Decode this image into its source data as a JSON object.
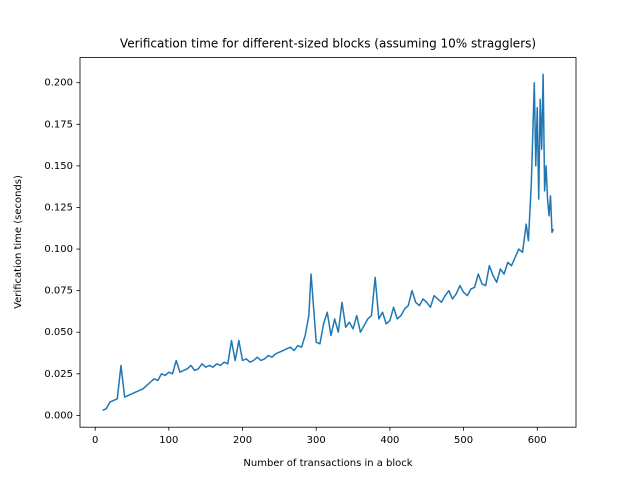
{
  "chart_data": {
    "type": "line",
    "title": "Verification time for different-sized blocks (assuming 10% stragglers)",
    "x_label": "Number of transactions in a block",
    "y_label": "Verification time (seconds)",
    "x": [
      10,
      15,
      20,
      25,
      30,
      35,
      40,
      45,
      50,
      55,
      60,
      65,
      70,
      75,
      80,
      85,
      90,
      95,
      100,
      105,
      110,
      115,
      120,
      125,
      130,
      135,
      140,
      145,
      150,
      155,
      160,
      165,
      170,
      175,
      180,
      185,
      190,
      195,
      200,
      205,
      210,
      215,
      220,
      225,
      230,
      235,
      240,
      245,
      250,
      255,
      260,
      265,
      270,
      275,
      280,
      285,
      290,
      293,
      300,
      305,
      310,
      315,
      320,
      325,
      330,
      335,
      340,
      345,
      350,
      355,
      360,
      365,
      370,
      375,
      380,
      385,
      390,
      395,
      400,
      405,
      410,
      415,
      420,
      425,
      430,
      435,
      440,
      445,
      450,
      455,
      460,
      465,
      470,
      475,
      480,
      485,
      490,
      495,
      500,
      505,
      510,
      515,
      520,
      525,
      530,
      535,
      540,
      545,
      550,
      555,
      560,
      565,
      570,
      575,
      580,
      585,
      588,
      592,
      596,
      598,
      600,
      602,
      604,
      606,
      608,
      610,
      612,
      614,
      616,
      618,
      620,
      622
    ],
    "series": [
      {
        "name": "verification time",
        "color": "#1f77b4",
        "values": [
          0.003,
          0.004,
          0.008,
          0.009,
          0.01,
          0.03,
          0.011,
          0.012,
          0.013,
          0.014,
          0.015,
          0.016,
          0.018,
          0.02,
          0.022,
          0.021,
          0.025,
          0.024,
          0.026,
          0.025,
          0.033,
          0.026,
          0.027,
          0.028,
          0.03,
          0.027,
          0.028,
          0.031,
          0.029,
          0.03,
          0.029,
          0.031,
          0.03,
          0.032,
          0.031,
          0.045,
          0.033,
          0.045,
          0.033,
          0.034,
          0.032,
          0.033,
          0.035,
          0.033,
          0.034,
          0.036,
          0.035,
          0.037,
          0.038,
          0.039,
          0.04,
          0.041,
          0.039,
          0.042,
          0.041,
          0.048,
          0.06,
          0.085,
          0.044,
          0.043,
          0.055,
          0.062,
          0.048,
          0.058,
          0.05,
          0.068,
          0.053,
          0.056,
          0.052,
          0.06,
          0.05,
          0.054,
          0.058,
          0.06,
          0.083,
          0.058,
          0.062,
          0.055,
          0.057,
          0.065,
          0.058,
          0.06,
          0.064,
          0.066,
          0.075,
          0.068,
          0.066,
          0.07,
          0.068,
          0.065,
          0.072,
          0.07,
          0.068,
          0.072,
          0.075,
          0.07,
          0.073,
          0.078,
          0.074,
          0.072,
          0.076,
          0.077,
          0.085,
          0.079,
          0.078,
          0.09,
          0.084,
          0.08,
          0.088,
          0.085,
          0.092,
          0.09,
          0.095,
          0.1,
          0.098,
          0.115,
          0.105,
          0.14,
          0.2,
          0.15,
          0.185,
          0.13,
          0.19,
          0.16,
          0.205,
          0.135,
          0.15,
          0.13,
          0.12,
          0.132,
          0.11,
          0.112
        ]
      }
    ],
    "xlim": [
      -20.6,
      652.6
    ],
    "ylim": [
      -0.0071,
      0.2151
    ],
    "xticks": [
      0,
      100,
      200,
      300,
      400,
      500,
      600
    ],
    "yticks": [
      {
        "value": 0,
        "label": "0.000"
      },
      {
        "value": 0.025,
        "label": "0.025"
      },
      {
        "value": 0.05,
        "label": "0.050"
      },
      {
        "value": 0.075,
        "label": "0.075"
      },
      {
        "value": 0.1,
        "label": "0.100"
      },
      {
        "value": 0.125,
        "label": "0.125"
      },
      {
        "value": 0.15,
        "label": "0.150"
      },
      {
        "value": 0.175,
        "label": "0.175"
      },
      {
        "value": 0.2,
        "label": "0.200"
      }
    ],
    "grid": false
  }
}
